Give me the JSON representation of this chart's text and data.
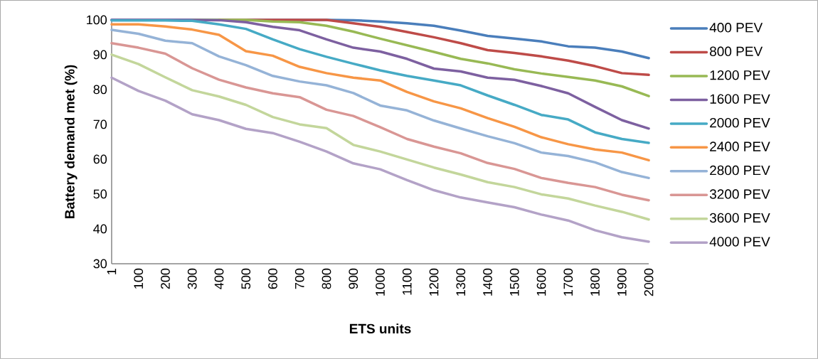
{
  "chart_data": {
    "type": "line",
    "xlabel": "ETS units",
    "ylabel": "Battery demand met (%)",
    "categories": [
      "1",
      "100",
      "200",
      "300",
      "400",
      "500",
      "600",
      "700",
      "800",
      "900",
      "1000",
      "1100",
      "1200",
      "1300",
      "1400",
      "1500",
      "1600",
      "1700",
      "1800",
      "1900",
      "2000"
    ],
    "ylim": [
      30,
      100
    ],
    "yticks": [
      30,
      40,
      50,
      60,
      70,
      80,
      90,
      100
    ],
    "grid": false,
    "legend": "right",
    "marker": "none",
    "line_style": "solid",
    "series": [
      {
        "name": "400 PEV",
        "color": "#4a7ebb",
        "values": [
          100,
          100,
          100,
          100,
          100,
          100,
          100,
          100,
          100,
          99.9,
          99.5,
          99,
          98.3,
          96.9,
          95.4,
          94.6,
          93.8,
          92.4,
          92,
          90.9,
          89
        ]
      },
      {
        "name": "800 PEV",
        "color": "#be4b48",
        "values": [
          null,
          null,
          null,
          null,
          100,
          100,
          100,
          100,
          100,
          99,
          98,
          96.5,
          95,
          93.3,
          91.3,
          90.5,
          89.5,
          88.3,
          86.7,
          84.7,
          84.2
        ]
      },
      {
        "name": "1200 PEV",
        "color": "#98b954",
        "values": [
          null,
          null,
          null,
          100,
          100,
          100,
          99.5,
          99.3,
          98.3,
          96.6,
          94.6,
          92.7,
          90.8,
          88.8,
          87.5,
          85.8,
          84.6,
          83.6,
          82.6,
          80.9,
          78.1
        ]
      },
      {
        "name": "1600 PEV",
        "color": "#7d60a0",
        "values": [
          100,
          100,
          100,
          100,
          99.9,
          99.3,
          98,
          97,
          94.4,
          92,
          90.9,
          88.8,
          86,
          85.2,
          83.4,
          82.8,
          81,
          78.9,
          75,
          71.2,
          68.8
        ]
      },
      {
        "name": "2000 PEV",
        "color": "#46aac5",
        "values": [
          99.8,
          99.8,
          99.8,
          99.7,
          98.7,
          97.4,
          94.4,
          91.6,
          89.4,
          87.4,
          85.5,
          83.9,
          82.6,
          81.2,
          78.3,
          75.6,
          72.7,
          71.4,
          67.7,
          65.8,
          64.7
        ]
      },
      {
        "name": "2400 PEV",
        "color": "#f79646",
        "values": [
          98.7,
          98.7,
          98.1,
          97.2,
          95.7,
          91,
          89.7,
          86.5,
          84.7,
          83.4,
          82.6,
          79.3,
          76.6,
          74.6,
          71.8,
          69.3,
          66.3,
          64.3,
          62.8,
          61.9,
          59.7
        ]
      },
      {
        "name": "2800 PEV",
        "color": "#95b3d7",
        "values": [
          97.1,
          96,
          94,
          93.3,
          89.5,
          87,
          83.9,
          82.3,
          81.2,
          79,
          75.4,
          74,
          71.1,
          68.8,
          66.6,
          64.6,
          61.9,
          60.9,
          59.1,
          56.3,
          54.6
        ]
      },
      {
        "name": "3200 PEV",
        "color": "#d99694",
        "values": [
          93.3,
          92,
          90.3,
          86.1,
          82.8,
          80.6,
          78.9,
          77.8,
          74.2,
          72.4,
          69.2,
          65.8,
          63.6,
          61.7,
          58.9,
          57.2,
          54.6,
          53.2,
          52,
          49.8,
          48.2
        ]
      },
      {
        "name": "3600 PEV",
        "color": "#c3d69b",
        "values": [
          90,
          87.3,
          83.5,
          79.8,
          78,
          75.6,
          72.1,
          70,
          68.9,
          64.1,
          62.2,
          59.9,
          57.6,
          55.6,
          53.4,
          52,
          49.9,
          48.7,
          46.7,
          44.9,
          42.7
        ]
      },
      {
        "name": "4000 PEV",
        "color": "#b3a2c7",
        "values": [
          83.4,
          79.6,
          76.8,
          72.9,
          71.2,
          68.7,
          67.5,
          65,
          62.2,
          58.8,
          57.1,
          54,
          51.1,
          49,
          47.6,
          46.2,
          44.1,
          42.4,
          39.6,
          37.6,
          36.3
        ]
      }
    ]
  }
}
